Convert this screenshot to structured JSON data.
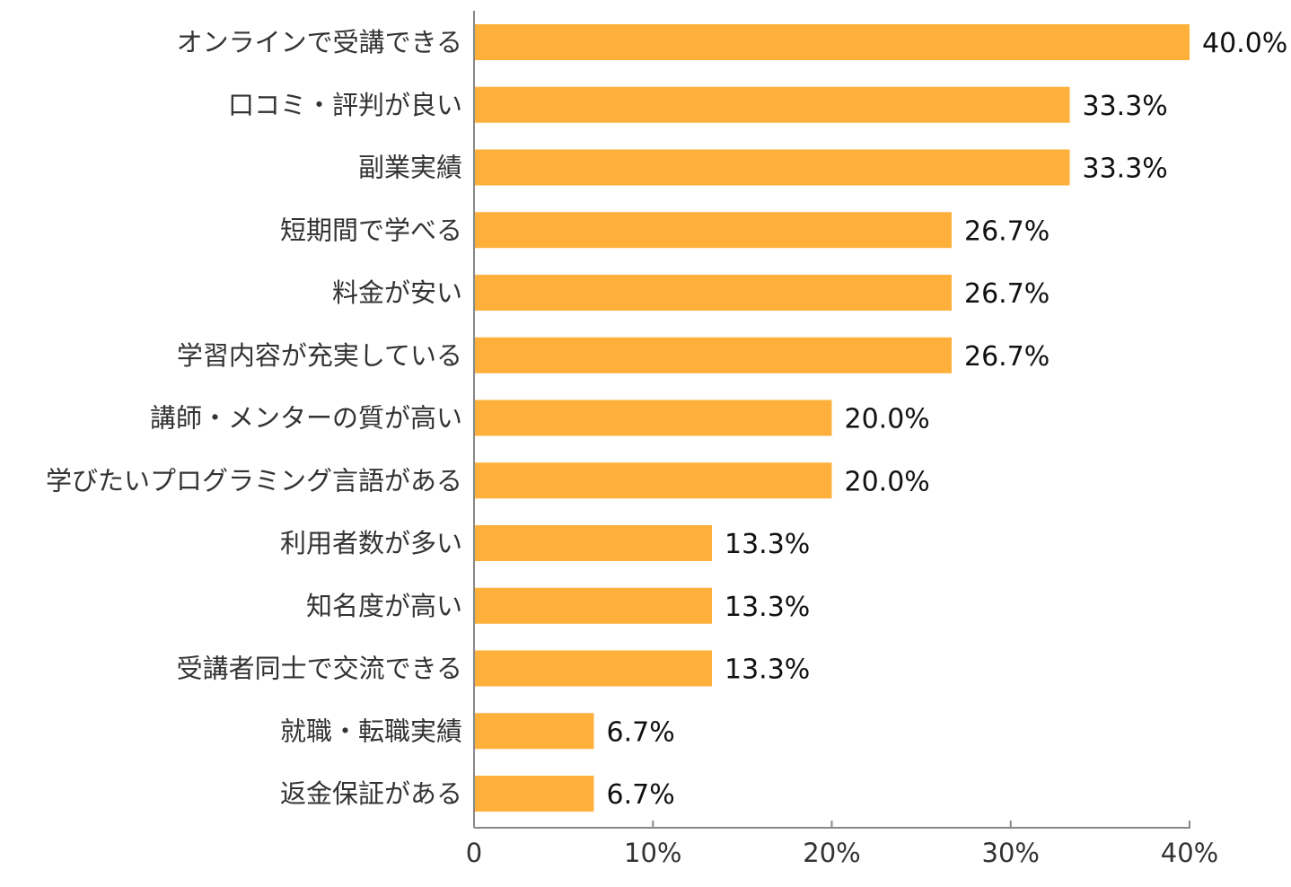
{
  "chart_data": {
    "type": "bar",
    "orientation": "horizontal",
    "categories": [
      "オンラインで受講できる",
      "口コミ・評判が良い",
      "副業実績",
      "短期間で学べる",
      "料金が安い",
      "学習内容が充実している",
      "講師・メンターの質が高い",
      "学びたいプログラミング言語がある",
      "利用者数が多い",
      "知名度が高い",
      "受講者同士で交流できる",
      "就職・転職実績",
      "返金保証がある"
    ],
    "values": [
      40.0,
      33.3,
      33.3,
      26.7,
      26.7,
      26.7,
      20.0,
      20.0,
      13.3,
      13.3,
      13.3,
      6.7,
      6.7
    ],
    "value_labels": [
      "40.0%",
      "33.3%",
      "33.3%",
      "26.7%",
      "26.7%",
      "26.7%",
      "20.0%",
      "20.0%",
      "13.3%",
      "13.3%",
      "13.3%",
      "6.7%",
      "6.7%"
    ],
    "xlim": [
      0,
      40
    ],
    "x_ticks": [
      0,
      10,
      20,
      30,
      40
    ],
    "x_tick_labels": [
      "0",
      "10%",
      "20%",
      "30%",
      "40%"
    ],
    "grid": false,
    "bar_color": "#FFB03B",
    "axis_color": "#888888"
  }
}
